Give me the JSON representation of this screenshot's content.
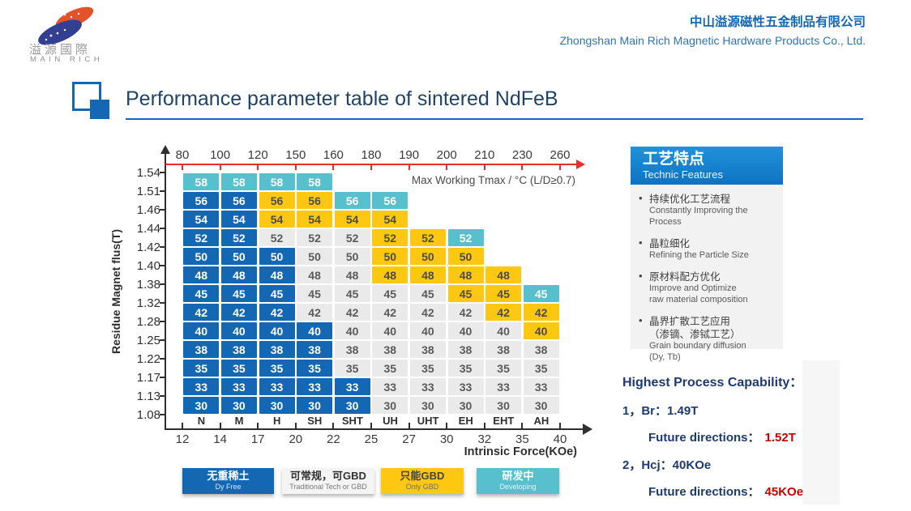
{
  "header": {
    "logo_cn": "溢源國際",
    "logo_en": "MAIN RICH",
    "company_cn": "中山溢源磁性五金制品有限公司",
    "company_en": "Zhongshan Main Rich Magnetic Hardware Products Co., Ltd."
  },
  "title": "Performance parameter table of sintered NdFeB",
  "chart_data": {
    "type": "heatmap",
    "title": "Performance parameter table of sintered NdFeB",
    "top_axis": {
      "label": "Max Working Tmax / °C (L/D≥0.7)",
      "ticks": [
        "80",
        "100",
        "120",
        "150",
        "160",
        "180",
        "190",
        "200",
        "210",
        "230",
        "260"
      ]
    },
    "left_axis": {
      "label": "Residue Magnet flus(T)",
      "ticks": [
        "1.54",
        "1.51",
        "1.46",
        "1.44",
        "1.42",
        "1.40",
        "1.38",
        "1.32",
        "1.28",
        "1.25",
        "1.22",
        "1.17",
        "1.13",
        "1.08"
      ]
    },
    "bottom_axis": {
      "label": "Intrinsic Force(KOe)",
      "grades": [
        "N",
        "M",
        "H",
        "SH",
        "SHT",
        "UH",
        "UHT",
        "EH",
        "EHT",
        "AH"
      ],
      "ticks": [
        "12",
        "14",
        "17",
        "20",
        "22",
        "25",
        "27",
        "30",
        "32",
        "35",
        "40"
      ]
    },
    "rows": [
      {
        "value": "58",
        "cells": [
          "d",
          "d",
          "d",
          "d"
        ]
      },
      {
        "value": "56",
        "cells": [
          "b",
          "b",
          "y",
          "y",
          "d",
          "d"
        ]
      },
      {
        "value": "54",
        "cells": [
          "b",
          "b",
          "y",
          "y",
          "y",
          "y"
        ]
      },
      {
        "value": "52",
        "cells": [
          "b",
          "b",
          "g",
          "g",
          "g",
          "y",
          "y",
          "d"
        ]
      },
      {
        "value": "50",
        "cells": [
          "b",
          "b",
          "b",
          "g",
          "g",
          "y",
          "y",
          "y"
        ]
      },
      {
        "value": "48",
        "cells": [
          "b",
          "b",
          "b",
          "g",
          "g",
          "y",
          "y",
          "y",
          "y"
        ]
      },
      {
        "value": "45",
        "cells": [
          "b",
          "b",
          "b",
          "g",
          "g",
          "g",
          "g",
          "y",
          "y",
          "d"
        ]
      },
      {
        "value": "42",
        "cells": [
          "b",
          "b",
          "b",
          "g",
          "g",
          "g",
          "g",
          "g",
          "y",
          "y"
        ]
      },
      {
        "value": "40",
        "cells": [
          "b",
          "b",
          "b",
          "b",
          "g",
          "g",
          "g",
          "g",
          "g",
          "y"
        ]
      },
      {
        "value": "38",
        "cells": [
          "b",
          "b",
          "b",
          "b",
          "g",
          "g",
          "g",
          "g",
          "g",
          "g"
        ]
      },
      {
        "value": "35",
        "cells": [
          "b",
          "b",
          "b",
          "b",
          "g",
          "g",
          "g",
          "g",
          "g",
          "g"
        ]
      },
      {
        "value": "33",
        "cells": [
          "b",
          "b",
          "b",
          "b",
          "b",
          "g",
          "g",
          "g",
          "g",
          "g"
        ]
      },
      {
        "value": "30",
        "cells": [
          "b",
          "b",
          "b",
          "b",
          "b",
          "g",
          "g",
          "g",
          "g",
          "g"
        ]
      }
    ],
    "legend": [
      {
        "key": "b",
        "cn": "无重稀土",
        "en": "Dy Free"
      },
      {
        "key": "g",
        "cn": "可常规，可GBD",
        "en": "Traditional Tech or GBD"
      },
      {
        "key": "y",
        "cn": "只能GBD",
        "en": "Only GBD"
      },
      {
        "key": "d",
        "cn": "研发中",
        "en": "Developing"
      }
    ],
    "colors": {
      "b": "#1467b3",
      "g": "#eaeaea",
      "y": "#fdc712",
      "d": "#58c0cd",
      "legend_g": "#f4f4f4",
      "axis_red": "#e8302a"
    }
  },
  "features_panel": {
    "title_cn": "工艺特点",
    "title_en": "Technic Features",
    "items": [
      {
        "cn": [
          "持续优化工艺流程"
        ],
        "en": [
          "Constantly Improving the Process"
        ]
      },
      {
        "cn": [
          "晶粒细化"
        ],
        "en": [
          "Refining the Particle Size"
        ]
      },
      {
        "cn": [
          "原材料配方优化"
        ],
        "en": [
          "Improve and Optimize",
          "raw material composition"
        ]
      },
      {
        "cn": [
          "晶界扩散工艺应用",
          "（渗镝、渗铽工艺）"
        ],
        "en": [
          "Grain boundary diffusion",
          "(Dy, Tb)"
        ]
      }
    ]
  },
  "capability": {
    "title": "Highest Process Capability：",
    "items": [
      {
        "line": "1，Br：1.49T",
        "future_label": "Future directions：",
        "future_value": "1.52T"
      },
      {
        "line": "2，Hcj：40KOe",
        "future_label": "Future directions：",
        "future_value": "45KOe"
      }
    ]
  }
}
